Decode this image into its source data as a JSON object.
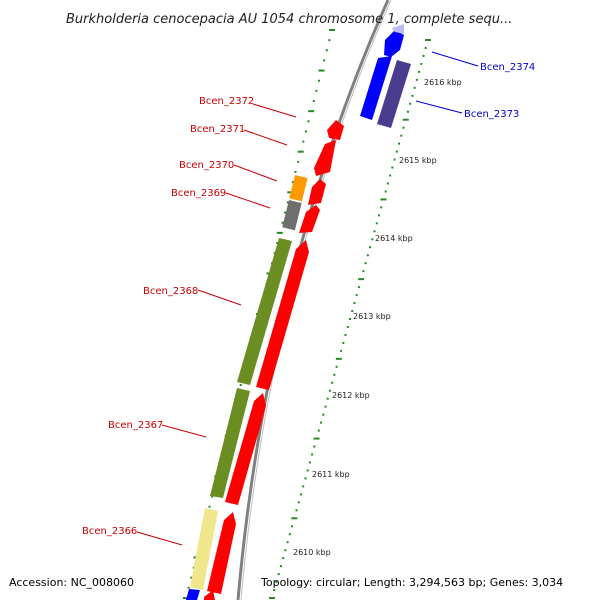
{
  "title": "Burkholderia cenocepacia AU 1054 chromosome 1, complete sequ...",
  "footer": {
    "accession": "Accession: NC_008060",
    "topology": "Topology: circular; Length: 3,294,563 bp; Genes: 3,034"
  },
  "ticks": [
    {
      "kbp": 2616,
      "label": "2616 kbp"
    },
    {
      "kbp": 2615,
      "label": "2615 kbp"
    },
    {
      "kbp": 2614,
      "label": "2614 kbp"
    },
    {
      "kbp": 2613,
      "label": "2613 kbp"
    },
    {
      "kbp": 2612,
      "label": "2612 kbp"
    },
    {
      "kbp": 2611,
      "label": "2611 kbp"
    },
    {
      "kbp": 2610,
      "label": "2610 kbp"
    }
  ],
  "gene_labels": [
    {
      "name": "Bcen_2374",
      "color": "#0000cc"
    },
    {
      "name": "Bcen_2373",
      "color": "#0000cc"
    },
    {
      "name": "Bcen_2372",
      "color": "#cc0000"
    },
    {
      "name": "Bcen_2371",
      "color": "#cc0000"
    },
    {
      "name": "Bcen_2370",
      "color": "#cc0000"
    },
    {
      "name": "Bcen_2369",
      "color": "#cc0000"
    },
    {
      "name": "Bcen_2368",
      "color": "#cc0000"
    },
    {
      "name": "Bcen_2367",
      "color": "#cc0000"
    },
    {
      "name": "Bcen_2366",
      "color": "#cc0000"
    }
  ],
  "colors": {
    "forward_cds": "#ff0000",
    "reverse_cds": "#0000ff",
    "reverse_cds_dark": "#4a3d8f",
    "cog_green": "#6b8e23",
    "cog_orange": "#ff9900",
    "cog_gray": "#6e6e6e",
    "cog_pale": "#f0e68c",
    "backbone": "#808080",
    "tick_green": "#228b22"
  }
}
